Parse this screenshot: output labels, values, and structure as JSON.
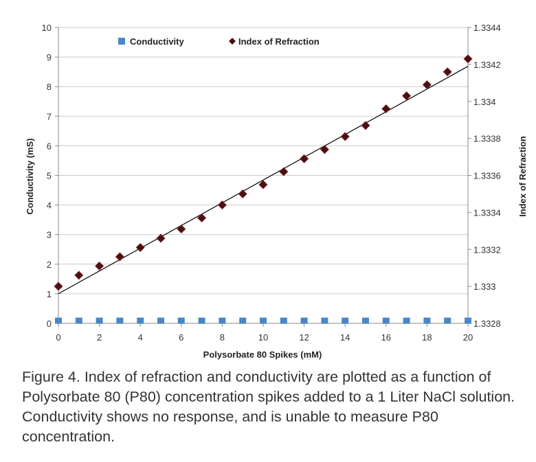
{
  "chart_data": {
    "type": "scatter",
    "xlabel": "Polysorbate 80 Spikes (mM)",
    "ylabel_left": "Conductivity (mS)",
    "ylabel_right": "Index of Refraction",
    "xlim": [
      0,
      20
    ],
    "ylim_left": [
      0,
      10
    ],
    "ylim_right": [
      1.3328,
      1.3344
    ],
    "x_ticks": [
      "0",
      "2",
      "4",
      "6",
      "8",
      "10",
      "12",
      "14",
      "16",
      "18",
      "20"
    ],
    "y_left_ticks": [
      "0",
      "1",
      "2",
      "3",
      "4",
      "5",
      "6",
      "7",
      "8",
      "9",
      "10"
    ],
    "y_right_ticks": [
      "1.3328",
      "1.333",
      "1.3332",
      "1.3334",
      "1.3336",
      "1.3338",
      "1.334",
      "1.3342",
      "1.3344"
    ],
    "grid": true,
    "legend_position": "top",
    "series": [
      {
        "name": "Conductivity",
        "axis": "left",
        "marker": "square",
        "color": "#4a86c5",
        "x": [
          0,
          1,
          2,
          3,
          4,
          5,
          6,
          7,
          8,
          9,
          10,
          11,
          12,
          13,
          14,
          15,
          16,
          17,
          18,
          19,
          20
        ],
        "y": [
          0.1,
          0.1,
          0.1,
          0.1,
          0.1,
          0.1,
          0.1,
          0.1,
          0.1,
          0.1,
          0.1,
          0.1,
          0.1,
          0.1,
          0.1,
          0.1,
          0.1,
          0.1,
          0.1,
          0.1,
          0.1
        ]
      },
      {
        "name": "Index of Refraction",
        "axis": "right",
        "marker": "diamond",
        "color": "#4a0f12",
        "x": [
          0,
          1,
          2,
          3,
          4,
          5,
          6,
          7,
          8,
          9,
          10,
          11,
          12,
          13,
          14,
          15,
          16,
          17,
          18,
          19,
          20
        ],
        "y": [
          1.333,
          1.33306,
          1.33311,
          1.33316,
          1.33321,
          1.33326,
          1.33331,
          1.33337,
          1.33344,
          1.3335,
          1.33355,
          1.33362,
          1.33369,
          1.33374,
          1.33381,
          1.33387,
          1.33396,
          1.33403,
          1.33409,
          1.33416,
          1.33423
        ]
      }
    ],
    "trendline": {
      "series": "Index of Refraction",
      "type": "linear",
      "color": "#000000",
      "x": [
        0,
        20
      ],
      "y": [
        1.33296,
        1.33419
      ]
    }
  },
  "caption": "Figure 4. Index of refraction and conductivity are plotted as a function of Polysorbate 80 (P80) concentration spikes added to a 1 Liter NaCl solution. Conductivity shows no response, and is unable to measure P80 concentration."
}
